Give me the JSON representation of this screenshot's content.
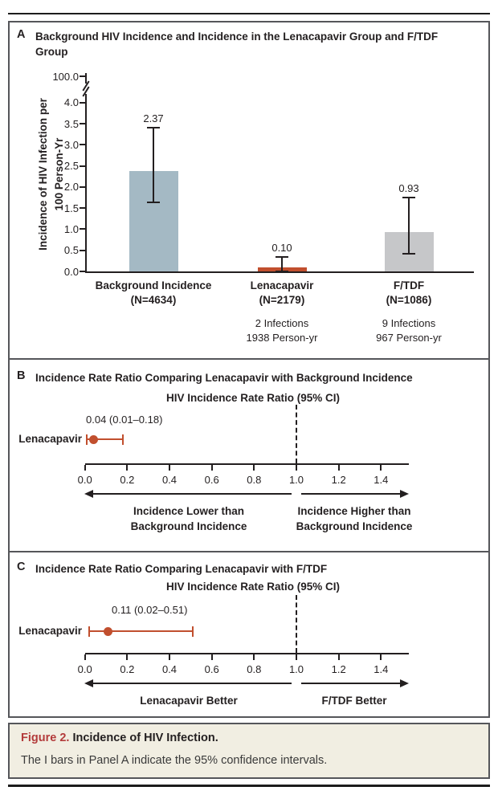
{
  "panels": {
    "A": {
      "letter": "A"
    },
    "B": {
      "letter": "B"
    },
    "C": {
      "letter": "C"
    }
  },
  "caption": {
    "label": "Figure 2.",
    "title": "Incidence of HIV Infection.",
    "note": "The I bars in Panel A indicate the 95% confidence intervals."
  },
  "colors": {
    "ink": "#231f20",
    "panel_border": "#55565a",
    "background_bar": "#a4b9c4",
    "lenacapavir_bar": "#c14f2e",
    "ftdf_bar": "#c6c7c9",
    "forest_marker": "#c14f2e",
    "figure_label_red": "#b33b3b",
    "caption_background": "#f1eee2"
  },
  "chart_data": [
    {
      "panel": "A",
      "type": "bar",
      "title": "Background HIV Incidence and Incidence in the Lenacapavir Group and F/TDF Group",
      "ylabel": "Incidence of HIV Infection per 100 Person-Yr",
      "y_ticks": [
        "0.0",
        "0.5",
        "1.0",
        "1.5",
        "2.0",
        "2.5",
        "3.0",
        "3.5",
        "4.0"
      ],
      "y_axis_break_label": "100.0",
      "ylim": [
        0,
        4.2
      ],
      "grid": false,
      "bars": [
        {
          "category": "Background Incidence",
          "n_label": "(N=4634)",
          "value": 2.37,
          "value_label": "2.37",
          "ci": [
            1.65,
            3.42
          ],
          "color_key": "background_bar",
          "sub_lines": []
        },
        {
          "category": "Lenacapavir",
          "n_label": "(N=2179)",
          "value": 0.1,
          "value_label": "0.10",
          "ci": [
            0.01,
            0.36
          ],
          "color_key": "lenacapavir_bar",
          "sub_lines": [
            "2 Infections",
            "1938 Person-yr"
          ]
        },
        {
          "category": "F/TDF",
          "n_label": "(N=1086)",
          "value": 0.93,
          "value_label": "0.93",
          "ci": [
            0.43,
            1.77
          ],
          "color_key": "ftdf_bar",
          "sub_lines": [
            "9 Infections",
            "967 Person-yr"
          ]
        }
      ]
    },
    {
      "panel": "B",
      "type": "forest",
      "title": "Incidence Rate Ratio Comparing Lenacapavir with Background Incidence",
      "subtitle": "HIV Incidence Rate Ratio (95% CI)",
      "rows": [
        {
          "label": "Lenacapavir",
          "estimate": 0.04,
          "ci": [
            0.01,
            0.18
          ],
          "estimate_label": "0.04 (0.01–0.18)"
        }
      ],
      "x_ticks": [
        "0.0",
        "0.2",
        "0.4",
        "0.6",
        "0.8",
        "1.0",
        "1.2",
        "1.4"
      ],
      "xlim": [
        0,
        1.53
      ],
      "reference_line": 1.0,
      "left_arrow_label": [
        "Incidence Lower than",
        "Background Incidence"
      ],
      "right_arrow_label": [
        "Incidence Higher than",
        "Background Incidence"
      ]
    },
    {
      "panel": "C",
      "type": "forest",
      "title": "Incidence Rate Ratio Comparing Lenacapavir with F/TDF",
      "subtitle": "HIV Incidence Rate Ratio (95% CI)",
      "rows": [
        {
          "label": "Lenacapavir",
          "estimate": 0.11,
          "ci": [
            0.02,
            0.51
          ],
          "estimate_label": "0.11 (0.02–0.51)"
        }
      ],
      "x_ticks": [
        "0.0",
        "0.2",
        "0.4",
        "0.6",
        "0.8",
        "1.0",
        "1.2",
        "1.4"
      ],
      "xlim": [
        0,
        1.53
      ],
      "reference_line": 1.0,
      "left_arrow_label": [
        "Lenacapavir Better"
      ],
      "right_arrow_label": [
        "F/TDF Better"
      ]
    }
  ]
}
